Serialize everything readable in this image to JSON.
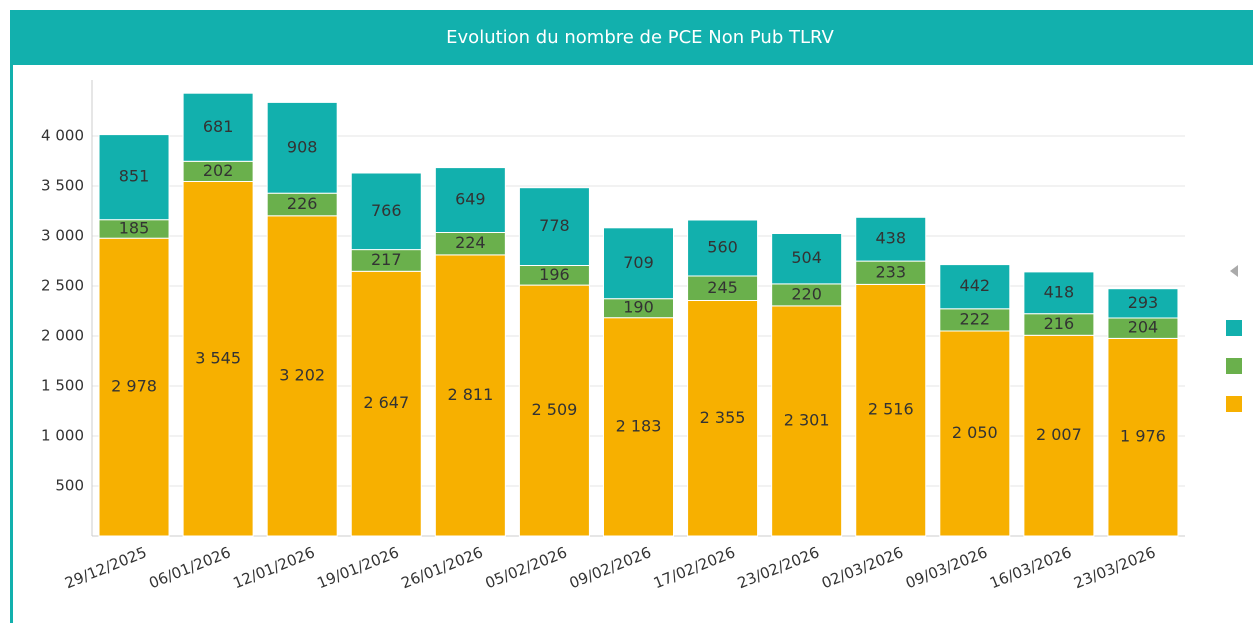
{
  "chart_data": {
    "type": "stacked-bar",
    "title": "Evolution du nombre de PCE Non Pub TLRV",
    "categories": [
      "29/12/2025",
      "06/01/2026",
      "12/01/2026",
      "19/01/2026",
      "26/01/2026",
      "05/02/2026",
      "09/02/2026",
      "17/02/2026",
      "23/02/2026",
      "02/03/2026",
      "09/03/2026",
      "16/03/2026",
      "23/03/2026"
    ],
    "series": [
      {
        "color": "#f7b000",
        "values": [
          2978,
          3545,
          3202,
          2647,
          2811,
          2509,
          2183,
          2355,
          2301,
          2516,
          2050,
          2007,
          1976
        ],
        "value_labels": [
          "2 978",
          "3 545",
          "3 202",
          "2 647",
          "2 811",
          "2 509",
          "2 183",
          "2 355",
          "2 301",
          "2 516",
          "2 050",
          "2 007",
          "1 976"
        ]
      },
      {
        "color": "#6ab04c",
        "values": [
          185,
          202,
          226,
          217,
          224,
          196,
          190,
          245,
          220,
          233,
          222,
          216,
          204
        ]
      },
      {
        "color": "#12b0ad",
        "values": [
          851,
          681,
          908,
          766,
          649,
          778,
          709,
          560,
          504,
          438,
          442,
          418,
          293
        ]
      }
    ],
    "ylim": [
      0,
      4500
    ],
    "yticks": [
      {
        "value": 500,
        "label": "500"
      },
      {
        "value": 1000,
        "label": "1 000"
      },
      {
        "value": 1500,
        "label": "1 500"
      },
      {
        "value": 2000,
        "label": "2 000"
      },
      {
        "value": 2500,
        "label": "2 500"
      },
      {
        "value": 3000,
        "label": "3 000"
      },
      {
        "value": 3500,
        "label": "3 500"
      },
      {
        "value": 4000,
        "label": "4 000"
      }
    ],
    "grid": true
  }
}
